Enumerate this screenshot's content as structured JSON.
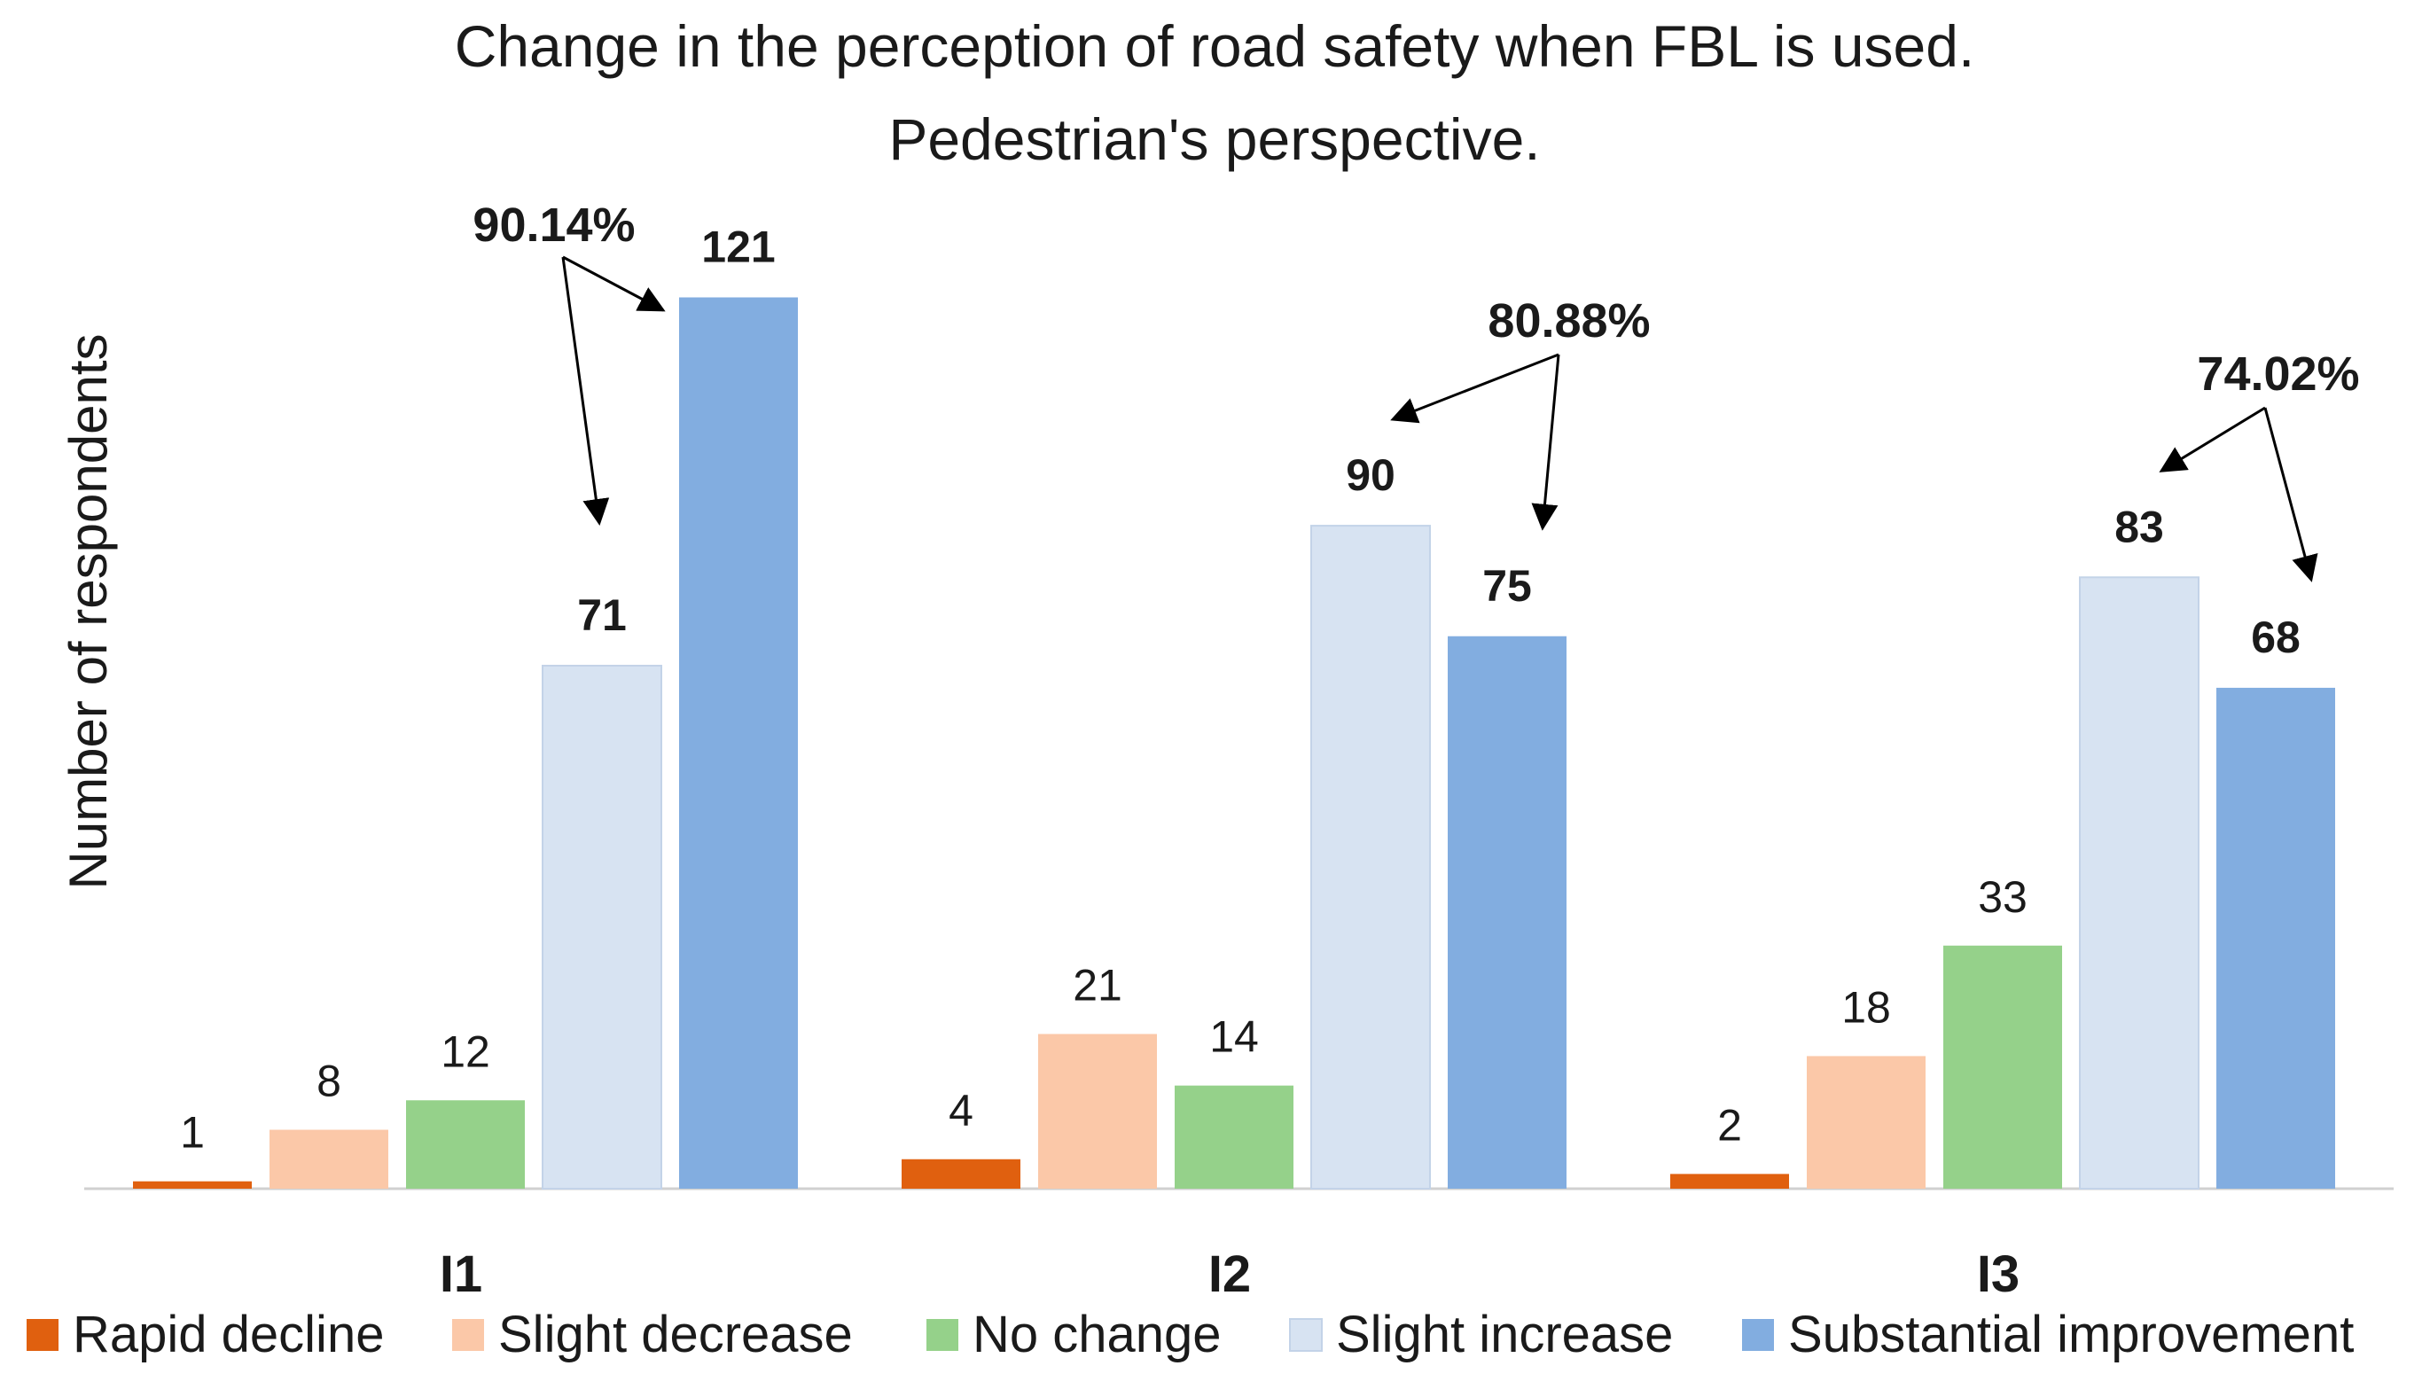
{
  "chart_data": {
    "type": "bar",
    "title": "Change in the perception of road safety when FBL is used.",
    "subtitle": "Pedestrian's perspective.",
    "xlabel": "",
    "ylabel": "Number of respondents",
    "ylim": [
      0,
      130
    ],
    "grid": false,
    "legend_position": "bottom",
    "categories": [
      "I1",
      "I2",
      "I3"
    ],
    "series": [
      {
        "name": "Rapid decline",
        "color": "#e0600f",
        "values": [
          1,
          4,
          2
        ]
      },
      {
        "name": "Slight decrease",
        "color": "#fbc8a8",
        "values": [
          8,
          21,
          18
        ]
      },
      {
        "name": "No change",
        "color": "#95d18a",
        "values": [
          12,
          14,
          33
        ]
      },
      {
        "name": "Slight increase",
        "color": "#d7e3f2",
        "values": [
          71,
          90,
          83
        ]
      },
      {
        "name": "Substantial improvement",
        "color": "#82ade0",
        "values": [
          121,
          75,
          68
        ]
      }
    ],
    "annotations": [
      {
        "category": "I1",
        "text": "90.14%",
        "targets": [
          "Slight increase",
          "Substantial improvement"
        ]
      },
      {
        "category": "I2",
        "text": "80.88%",
        "targets": [
          "Slight increase",
          "Substantial improvement"
        ]
      },
      {
        "category": "I3",
        "text": "74.02%",
        "targets": [
          "Slight increase",
          "Substantial improvement"
        ]
      }
    ]
  }
}
